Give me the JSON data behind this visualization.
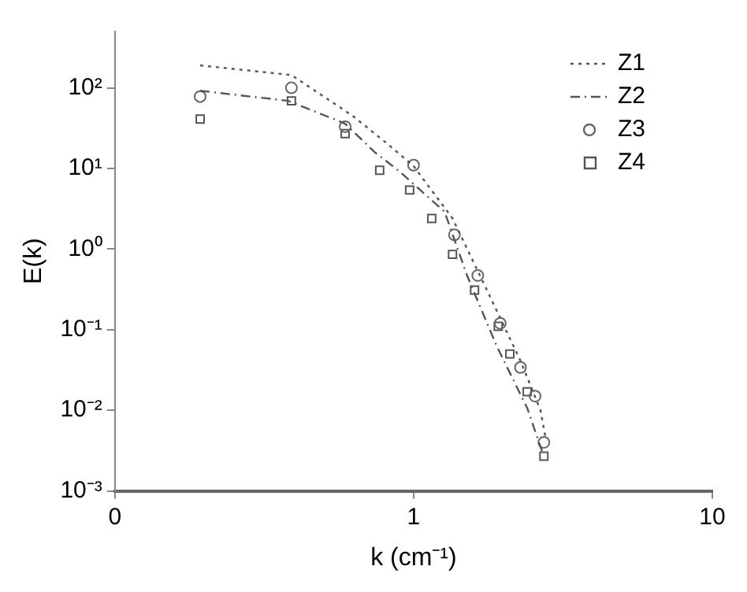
{
  "chart_data": {
    "type": "line",
    "xlabel": "k (cm⁻¹)",
    "ylabel": "E(k)",
    "log": "xy",
    "legend": "top right",
    "grid": false,
    "xlim": [
      0.1,
      10
    ],
    "xticks": [
      {
        "value": 0.1,
        "label": "0"
      },
      1,
      10
    ],
    "ylim": [
      0.001,
      500
    ],
    "yticks": [
      {
        "value": 0.001,
        "label": "10⁻³"
      },
      {
        "value": 0.01,
        "label": "10⁻²"
      },
      {
        "value": 0.1,
        "label": "10⁻¹"
      },
      {
        "value": 1,
        "label": "10⁰"
      },
      {
        "value": 10,
        "label": "10¹"
      },
      {
        "value": 100,
        "label": "10²"
      }
    ],
    "series": [
      {
        "name": "Z1",
        "type": "line",
        "color": "#555555",
        "line_style": "dotted",
        "marker": "none",
        "x": [
          0.193,
          0.39,
          0.625,
          0.82,
          1,
          1.35,
          1.8,
          2.28,
          2.66,
          2.77
        ],
        "values": [
          190,
          144,
          45,
          20,
          10.7,
          2.4,
          0.26,
          0.041,
          0.01,
          0.0044
        ]
      },
      {
        "name": "Z2",
        "type": "line",
        "color": "#555555",
        "line_style": "dashed",
        "marker": "none",
        "x": [
          0.193,
          0.38,
          0.59,
          0.74,
          0.9,
          1.27,
          1.51,
          1.9,
          2.4,
          2.7
        ],
        "values": [
          92,
          69,
          36,
          16,
          9.1,
          2.9,
          0.47,
          0.062,
          0.0107,
          0.003
        ]
      },
      {
        "name": "Z3",
        "type": "scatter",
        "color": "#666666",
        "marker": "circle",
        "x": [
          0.193,
          0.39,
          0.59,
          1,
          1.37,
          1.64,
          1.95,
          2.28,
          2.55,
          2.73
        ],
        "values": [
          78,
          100,
          33,
          11,
          1.5,
          0.47,
          0.12,
          0.034,
          0.015,
          0.004
        ]
      },
      {
        "name": "Z4",
        "type": "scatter",
        "color": "#555555",
        "marker": "square",
        "x": [
          0.193,
          0.39,
          0.59,
          0.77,
          0.97,
          1.15,
          1.35,
          1.6,
          1.92,
          2.1,
          2.4,
          2.73
        ],
        "values": [
          41,
          69,
          27,
          9.5,
          5.4,
          2.4,
          0.86,
          0.31,
          0.11,
          0.05,
          0.017,
          0.0027
        ]
      }
    ]
  }
}
